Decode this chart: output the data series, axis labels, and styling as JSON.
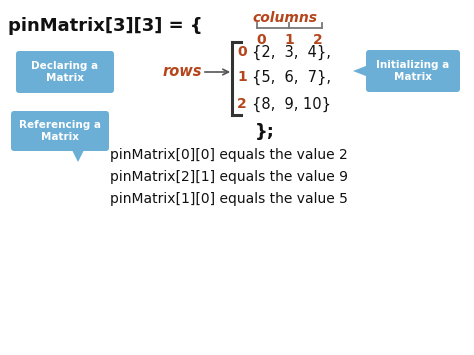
{
  "bg_color": "#ffffff",
  "title_text": "pinMatrix[3][3] = {",
  "columns_label": "columns",
  "columns_color": "#b5451b",
  "rows_label": "rows",
  "rows_color": "#b5451b",
  "col_indices": [
    "0",
    "1",
    "2"
  ],
  "col_indices_color": "#b5451b",
  "row_indices": [
    "0",
    "1",
    "2"
  ],
  "matrix_row0": "{2,  3,  4},",
  "matrix_row1": "{5,  6,  7},",
  "matrix_row2": "{8,  9, 10}",
  "closing": "};",
  "ref_lines": [
    "pinMatrix[0][0] equals the value 2",
    "pinMatrix[2][1] equals the value 9",
    "pinMatrix[1][0] equals the value 5"
  ],
  "callout_declare_text": "Declaring a\nMatrix",
  "callout_init_text": "Initializing a\nMatrix",
  "callout_ref_text": "Referencing a\nMatrix",
  "callout_color": "#6baed6",
  "callout_text_color": "#ffffff",
  "callout_fontsize": 7.5
}
